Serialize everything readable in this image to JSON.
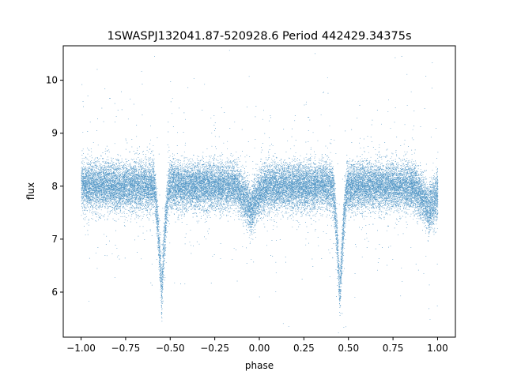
{
  "chart_data": {
    "type": "scatter",
    "title": "1SWASPJ132041.87-520928.6 Period 442429.34375s",
    "xlabel": "phase",
    "ylabel": "flux",
    "xlim": [
      -1.1,
      1.1
    ],
    "ylim": [
      5.15,
      10.65
    ],
    "xticks": [
      -1.0,
      -0.75,
      -0.5,
      -0.25,
      0.0,
      0.25,
      0.5,
      0.75,
      1.0
    ],
    "xtick_labels": [
      "−1.00",
      "−0.75",
      "−0.50",
      "−0.25",
      "0.00",
      "0.25",
      "0.50",
      "0.75",
      "1.00"
    ],
    "yticks": [
      6,
      7,
      8,
      9,
      10
    ],
    "ytick_labels": [
      "6",
      "7",
      "8",
      "9",
      "10"
    ],
    "grid": false,
    "marker_color": "#1f77b4",
    "light_curve": {
      "baseline_flux": 8.0,
      "noise_sigma": 0.22,
      "primary_minima_phase": [
        -0.55,
        0.45
      ],
      "primary_minimum_flux": 5.95,
      "primary_halfwidth_phase": 0.045,
      "secondary_minima_phase": [
        -0.05,
        0.95
      ],
      "secondary_minimum_flux": 7.55,
      "secondary_halfwidth_phase": 0.09,
      "phase_range": [
        -1.0,
        1.0
      ],
      "n_points": 30000
    }
  }
}
